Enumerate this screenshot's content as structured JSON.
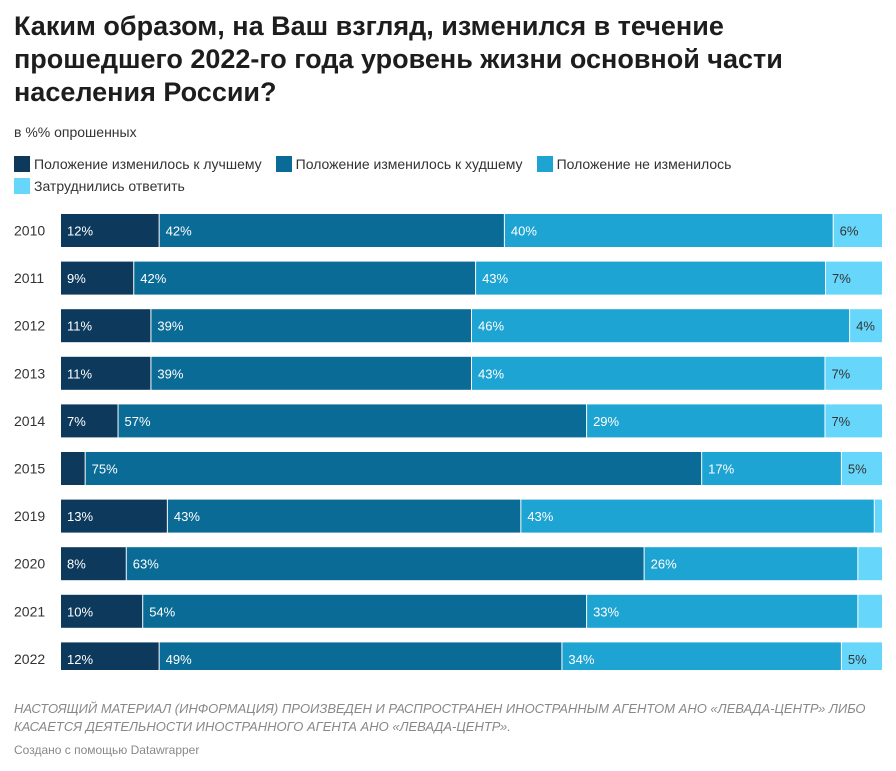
{
  "title": "Каким образом, на Ваш взгляд, изменился в течение\nпрошедшего 2022-го года уровень жизни основной части\nнаселения России?",
  "subtitle": "в %% опрошенных",
  "footer": {
    "notice": "НАСТОЯЩИЙ МАТЕРИАЛ (ИНФОРМАЦИЯ) ПРОИЗВЕДЕН И РАСПРОСТРАНЕН ИНОСТРАННЫМ АГЕНТОМ АНО «ЛЕВАДА-ЦЕНТР» ЛИБО КАСАЕТСЯ ДЕЯТЕЛЬНОСТИ ИНОСТРАННОГО АГЕНТА АНО «ЛЕВАДА-ЦЕНТР».",
    "credit": "Создано с помощью Datawrapper"
  },
  "chart_data": {
    "type": "bar",
    "orientation": "horizontal",
    "stacked": true,
    "legend_position": "top",
    "categories": [
      "2010",
      "2011",
      "2012",
      "2013",
      "2014",
      "2015",
      "2019",
      "2020",
      "2021",
      "2022"
    ],
    "series": [
      {
        "name": "Положение изменилось к лучшему",
        "color": "#0d3a5c",
        "values": [
          12,
          9,
          11,
          11,
          7,
          3,
          13,
          8,
          10,
          12
        ],
        "labels": [
          "12%",
          "9%",
          "11%",
          "11%",
          "7%",
          "",
          "13%",
          "8%",
          "10%",
          "12%"
        ]
      },
      {
        "name": "Положение изменилось к худшему",
        "color": "#0a6b96",
        "values": [
          42,
          42,
          39,
          39,
          57,
          75,
          43,
          63,
          54,
          49
        ],
        "labels": [
          "42%",
          "42%",
          "39%",
          "39%",
          "57%",
          "75%",
          "43%",
          "63%",
          "54%",
          "49%"
        ]
      },
      {
        "name": "Положение не изменилось",
        "color": "#1ea4d2",
        "values": [
          40,
          43,
          46,
          43,
          29,
          17,
          43,
          26,
          33,
          34
        ],
        "labels": [
          "40%",
          "43%",
          "46%",
          "43%",
          "29%",
          "17%",
          "43%",
          "26%",
          "33%",
          "34%"
        ]
      },
      {
        "name": "Затруднились ответить",
        "color": "#66d6fa",
        "values": [
          6,
          7,
          4,
          7,
          7,
          5,
          1,
          3,
          3,
          5
        ],
        "labels": [
          "6%",
          "7%",
          "4%",
          "7%",
          "7%",
          "5%",
          "",
          "",
          "",
          "5%"
        ]
      }
    ]
  }
}
